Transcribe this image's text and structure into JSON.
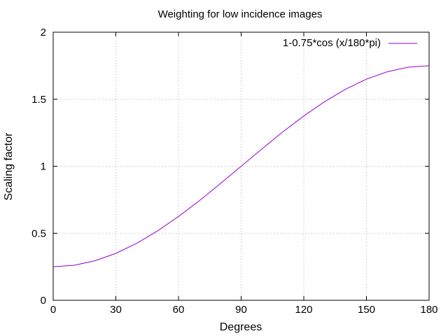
{
  "chart_data": {
    "type": "line",
    "title": "Weighting for low incidence images",
    "xlabel": "Degrees",
    "ylabel": "Scaling factor",
    "xlim": [
      0,
      180
    ],
    "ylim": [
      0,
      2
    ],
    "xticks": [
      0,
      30,
      60,
      90,
      120,
      150,
      180
    ],
    "yticks": [
      0,
      0.5,
      1,
      1.5,
      2
    ],
    "xtick_labels": [
      "0",
      "30",
      "60",
      "90",
      "120",
      "150",
      "180"
    ],
    "ytick_labels": [
      "0",
      "0.5",
      "1",
      "1.5",
      "2"
    ],
    "grid": true,
    "legend_position": "top-right",
    "series": [
      {
        "name": "1-0.75*cos (x/180*pi)",
        "color": "#9400d3",
        "x": [
          0,
          10,
          20,
          30,
          40,
          50,
          60,
          70,
          80,
          90,
          100,
          110,
          120,
          130,
          140,
          150,
          160,
          170,
          180
        ],
        "y": [
          0.25,
          0.261,
          0.295,
          0.35,
          0.425,
          0.518,
          0.625,
          0.743,
          0.87,
          1.0,
          1.13,
          1.257,
          1.375,
          1.482,
          1.575,
          1.65,
          1.705,
          1.739,
          1.75
        ]
      }
    ]
  }
}
